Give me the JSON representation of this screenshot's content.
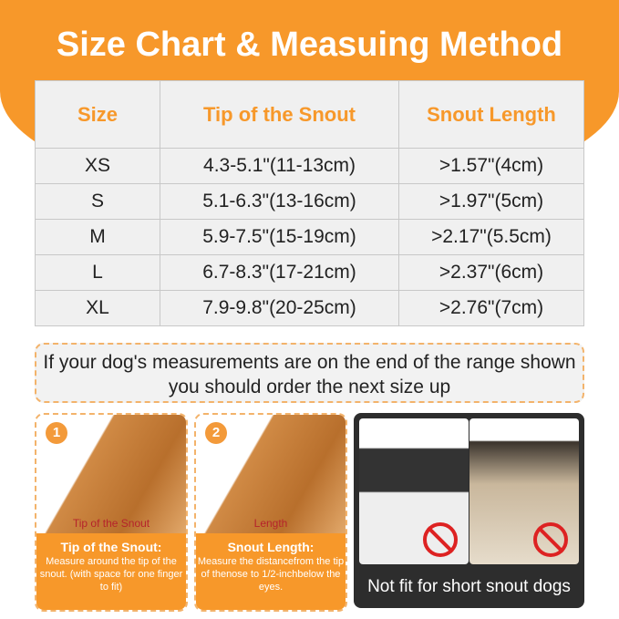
{
  "title": "Size Chart & Measuing Method",
  "table": {
    "headers": [
      "Size",
      "Tip of the Snout",
      "Snout Length"
    ],
    "rows": [
      [
        "XS",
        "4.3-5.1\"(11-13cm)",
        ">1.57\"(4cm)"
      ],
      [
        "S",
        "5.1-6.3\"(13-16cm)",
        ">1.97\"(5cm)"
      ],
      [
        "M",
        "5.9-7.5\"(15-19cm)",
        ">2.17\"(5.5cm)"
      ],
      [
        "L",
        "6.7-8.3\"(17-21cm)",
        ">2.37\"(6cm)"
      ],
      [
        "XL",
        "7.9-9.8\"(20-25cm)",
        ">2.76\"(7cm)"
      ]
    ]
  },
  "note": "If your dog's measurements are on the end of the range shown you should order the next size up",
  "steps": [
    {
      "number": "1",
      "caption": "Tip of the Snout",
      "heading": "Tip of the Snout:",
      "text": "Measure around the tip of the snout. (with space for one finger to fit)"
    },
    {
      "number": "2",
      "caption": "Length",
      "heading": "Snout Length:",
      "text": "Measure the distancefrom the tip of thenose to 1/2-inchbelow the eyes."
    }
  ],
  "warning": "Not fit for short snout dogs",
  "colors": {
    "accent": "#f7982a",
    "ban": "#dd2222"
  }
}
